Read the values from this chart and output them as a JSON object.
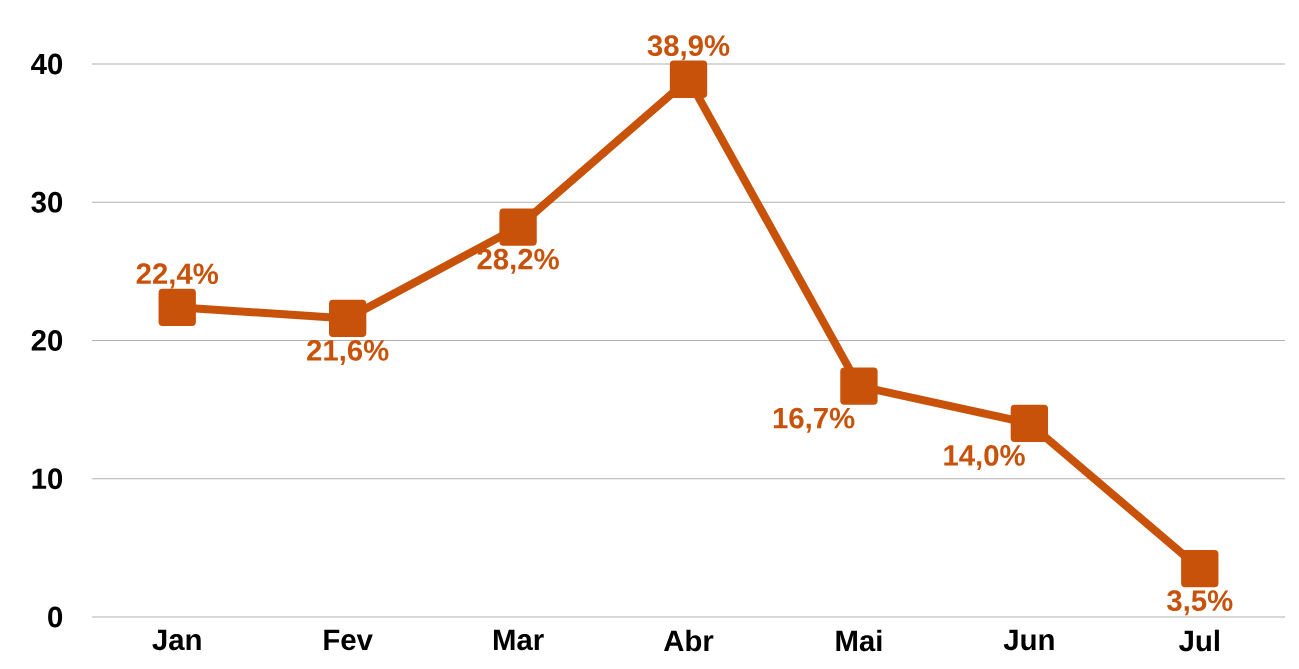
{
  "chart_data": {
    "type": "line",
    "categories": [
      "Jan",
      "Fev",
      "Mar",
      "Abr",
      "Mai",
      "Jun",
      "Jul"
    ],
    "values": [
      22.4,
      21.6,
      28.2,
      38.9,
      16.7,
      14.0,
      3.5
    ],
    "value_labels": [
      "22,4%",
      "21,6%",
      "28,2%",
      "38,9%",
      "16,7%",
      "14,0%",
      "3,5%"
    ],
    "color": "#c8520a",
    "ylim": [
      0,
      40
    ],
    "yticks": [
      0,
      10,
      20,
      30,
      40
    ],
    "grid": "y",
    "marker": "square"
  }
}
